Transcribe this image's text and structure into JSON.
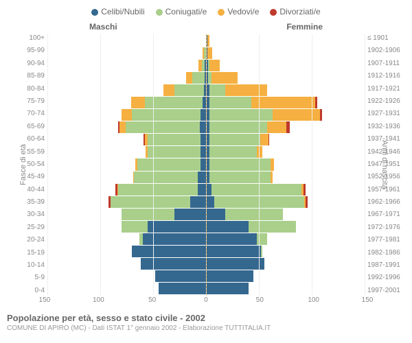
{
  "legend": [
    {
      "label": "Celibi/Nubili",
      "color": "#35688f"
    },
    {
      "label": "Coniugati/e",
      "color": "#a9cf8b"
    },
    {
      "label": "Vedovi/e",
      "color": "#f5b041"
    },
    {
      "label": "Divorziati/e",
      "color": "#c0392b"
    }
  ],
  "header_male": "Maschi",
  "header_female": "Femmine",
  "axis_left_title": "Fasce di età",
  "axis_right_title": "Anni di nascita",
  "age_groups": [
    "100+",
    "95-99",
    "90-94",
    "85-89",
    "80-84",
    "75-79",
    "70-74",
    "65-69",
    "60-64",
    "55-59",
    "50-54",
    "45-49",
    "40-44",
    "35-39",
    "30-34",
    "25-29",
    "20-24",
    "15-19",
    "10-14",
    "5-9",
    "0-4"
  ],
  "birth_years": [
    "≤ 1901",
    "1902-1906",
    "1907-1911",
    "1912-1916",
    "1917-1921",
    "1922-1926",
    "1927-1931",
    "1932-1936",
    "1937-1941",
    "1942-1946",
    "1947-1951",
    "1952-1956",
    "1957-1961",
    "1962-1966",
    "1967-1971",
    "1972-1976",
    "1977-1981",
    "1982-1986",
    "1987-1991",
    "1992-1996",
    "1997-2001"
  ],
  "xmax": 150,
  "xticks": [
    150,
    100,
    50,
    0,
    50,
    100,
    150
  ],
  "males": [
    {
      "s": 0,
      "m": 0,
      "w": 0,
      "d": 0
    },
    {
      "s": 0,
      "m": 2,
      "w": 1,
      "d": 0
    },
    {
      "s": 1,
      "m": 3,
      "w": 3,
      "d": 0
    },
    {
      "s": 1,
      "m": 12,
      "w": 6,
      "d": 0
    },
    {
      "s": 2,
      "m": 28,
      "w": 10,
      "d": 0
    },
    {
      "s": 3,
      "m": 55,
      "w": 13,
      "d": 0
    },
    {
      "s": 5,
      "m": 65,
      "w": 10,
      "d": 0
    },
    {
      "s": 6,
      "m": 70,
      "w": 6,
      "d": 1
    },
    {
      "s": 5,
      "m": 50,
      "w": 3,
      "d": 1
    },
    {
      "s": 5,
      "m": 50,
      "w": 2,
      "d": 0
    },
    {
      "s": 5,
      "m": 60,
      "w": 2,
      "d": 0
    },
    {
      "s": 8,
      "m": 60,
      "w": 1,
      "d": 0
    },
    {
      "s": 8,
      "m": 75,
      "w": 1,
      "d": 2
    },
    {
      "s": 15,
      "m": 75,
      "w": 0,
      "d": 2
    },
    {
      "s": 30,
      "m": 50,
      "w": 0,
      "d": 0
    },
    {
      "s": 55,
      "m": 25,
      "w": 0,
      "d": 0
    },
    {
      "s": 60,
      "m": 3,
      "w": 0,
      "d": 0
    },
    {
      "s": 70,
      "m": 0,
      "w": 0,
      "d": 0
    },
    {
      "s": 62,
      "m": 0,
      "w": 0,
      "d": 0
    },
    {
      "s": 48,
      "m": 0,
      "w": 0,
      "d": 0
    },
    {
      "s": 45,
      "m": 0,
      "w": 0,
      "d": 0
    }
  ],
  "females": [
    {
      "s": 1,
      "m": 0,
      "w": 2,
      "d": 0
    },
    {
      "s": 1,
      "m": 0,
      "w": 5,
      "d": 0
    },
    {
      "s": 2,
      "m": 1,
      "w": 10,
      "d": 0
    },
    {
      "s": 2,
      "m": 3,
      "w": 25,
      "d": 0
    },
    {
      "s": 3,
      "m": 15,
      "w": 40,
      "d": 0
    },
    {
      "s": 3,
      "m": 40,
      "w": 60,
      "d": 2
    },
    {
      "s": 3,
      "m": 60,
      "w": 45,
      "d": 2
    },
    {
      "s": 3,
      "m": 55,
      "w": 18,
      "d": 3
    },
    {
      "s": 3,
      "m": 48,
      "w": 8,
      "d": 1
    },
    {
      "s": 3,
      "m": 45,
      "w": 5,
      "d": 0
    },
    {
      "s": 3,
      "m": 58,
      "w": 3,
      "d": 0
    },
    {
      "s": 3,
      "m": 58,
      "w": 2,
      "d": 0
    },
    {
      "s": 5,
      "m": 85,
      "w": 2,
      "d": 2
    },
    {
      "s": 8,
      "m": 85,
      "w": 1,
      "d": 2
    },
    {
      "s": 18,
      "m": 55,
      "w": 0,
      "d": 0
    },
    {
      "s": 40,
      "m": 45,
      "w": 0,
      "d": 0
    },
    {
      "s": 48,
      "m": 10,
      "w": 0,
      "d": 0
    },
    {
      "s": 52,
      "m": 1,
      "w": 0,
      "d": 0
    },
    {
      "s": 55,
      "m": 0,
      "w": 0,
      "d": 0
    },
    {
      "s": 45,
      "m": 0,
      "w": 0,
      "d": 0
    },
    {
      "s": 40,
      "m": 0,
      "w": 0,
      "d": 0
    }
  ],
  "title": "Popolazione per età, sesso e stato civile - 2002",
  "subtitle": "COMUNE DI APIRO (MC) - Dati ISTAT 1° gennaio 2002 - Elaborazione TUTTITALIA.IT"
}
